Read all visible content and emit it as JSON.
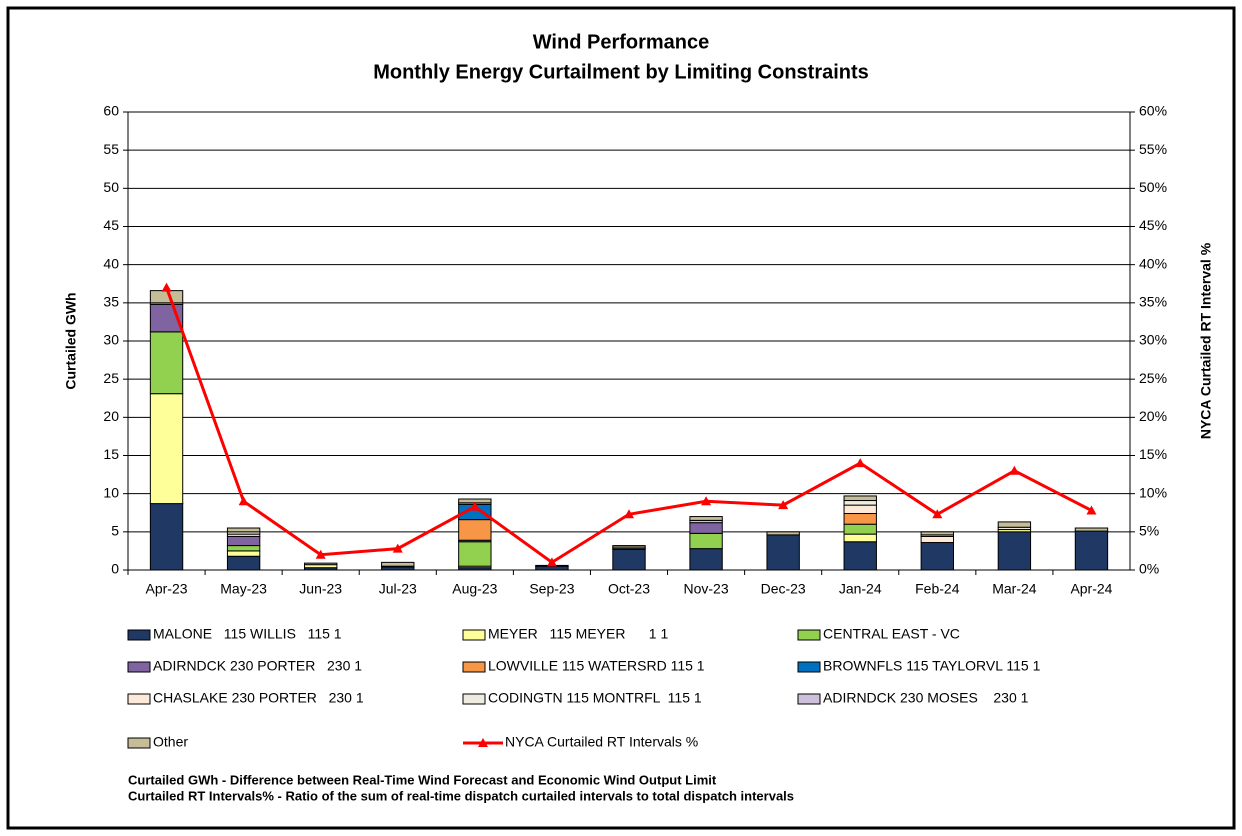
{
  "chart_data": {
    "type": "bar",
    "title": "Wind Performance",
    "subtitle": "Monthly Energy Curtailment by Limiting Constraints",
    "y_label": "Curtailed GWh",
    "y2_label": "NYCA Curtailed RT Interval %",
    "categories": [
      "Apr-23",
      "May-23",
      "Jun-23",
      "Jul-23",
      "Aug-23",
      "Sep-23",
      "Oct-23",
      "Nov-23",
      "Dec-23",
      "Jan-24",
      "Feb-24",
      "Mar-24",
      "Apr-24"
    ],
    "ylim": [
      0,
      60
    ],
    "yticks": [
      0,
      5,
      10,
      15,
      20,
      25,
      30,
      35,
      40,
      45,
      50,
      55,
      60
    ],
    "y2lim": [
      0,
      60
    ],
    "y2ticks": [
      {
        "value": 0,
        "label": "0%"
      },
      {
        "value": 5,
        "label": "5%"
      },
      {
        "value": 10,
        "label": "10%"
      },
      {
        "value": 15,
        "label": "15%"
      },
      {
        "value": 20,
        "label": "20%"
      },
      {
        "value": 25,
        "label": "25%"
      },
      {
        "value": 30,
        "label": "30%"
      },
      {
        "value": 35,
        "label": "35%"
      },
      {
        "value": 40,
        "label": "40%"
      },
      {
        "value": 45,
        "label": "45%"
      },
      {
        "value": 50,
        "label": "50%"
      },
      {
        "value": 55,
        "label": "55%"
      },
      {
        "value": 60,
        "label": "60%"
      }
    ],
    "grid": true,
    "series": [
      {
        "name": "MALONE   115 WILLIS   115 1",
        "color": "#1f3864",
        "values": [
          8.7,
          1.8,
          0.3,
          0.4,
          0.3,
          0.5,
          2.7,
          2.8,
          4.6,
          3.7,
          3.6,
          5.0,
          5.1
        ]
      },
      {
        "name": "MEYER   115 MEYER      1 1",
        "color": "#ffff99",
        "values": [
          14.4,
          0.7,
          0.4,
          0.1,
          0.2,
          0,
          0.1,
          0,
          0,
          1.0,
          0,
          0.3,
          0
        ]
      },
      {
        "name": "CENTRAL EAST - VC",
        "color": "#92d050",
        "values": [
          8.1,
          0.7,
          0,
          0,
          3.2,
          0,
          0,
          2.0,
          0,
          1.3,
          0,
          0,
          0
        ]
      },
      {
        "name": "ADIRNDCK 230 PORTER   230 1",
        "color": "#8064a2",
        "values": [
          3.6,
          1.2,
          0,
          0,
          0.2,
          0,
          0,
          1.4,
          0,
          0,
          0,
          0,
          0
        ]
      },
      {
        "name": "LOWVILLE 115 WATERSRD 115 1",
        "color": "#f79646",
        "values": [
          0,
          0,
          0,
          0,
          2.7,
          0,
          0,
          0,
          0,
          1.4,
          0,
          0,
          0
        ]
      },
      {
        "name": "BROWNFLS 115 TAYLORVL 115 1",
        "color": "#0070c0",
        "values": [
          0,
          0,
          0,
          0,
          2.0,
          0,
          0,
          0,
          0,
          0,
          0,
          0,
          0
        ]
      },
      {
        "name": "CHASLAKE 230 PORTER   230 1",
        "color": "#fde9d9",
        "values": [
          0,
          0.3,
          0,
          0,
          0,
          0,
          0,
          0,
          0,
          1.1,
          0.8,
          0,
          0
        ]
      },
      {
        "name": "CODINGTN 115 MONTRFL  115 1",
        "color": "#eeece1",
        "values": [
          0.2,
          0.3,
          0,
          0,
          0.2,
          0,
          0.2,
          0,
          0,
          0.6,
          0.2,
          0.3,
          0
        ]
      },
      {
        "name": "ADIRNDCK 230 MOSES    230 1",
        "color": "#ccc0da",
        "values": [
          0,
          0,
          0,
          0,
          0,
          0,
          0,
          0.3,
          0,
          0,
          0,
          0,
          0
        ]
      },
      {
        "name": "Other",
        "color": "#c4bd97",
        "values": [
          1.6,
          0.5,
          0.2,
          0.5,
          0.5,
          0.1,
          0.2,
          0.5,
          0.4,
          0.6,
          0.4,
          0.7,
          0.4
        ]
      },
      {
        "name": "NYCA Curtailed RT Intervals %",
        "color": "#ff0000",
        "type": "line",
        "axis": "y2",
        "values": [
          37,
          9,
          2,
          2.8,
          8.3,
          1,
          7.3,
          9,
          8.5,
          14,
          7.3,
          13,
          7.8
        ]
      }
    ],
    "notes": [
      "Curtailed GWh - Difference between Real-Time Wind Forecast and Economic Wind Output Limit",
      "Curtailed RT Intervals% - Ratio of the sum of real-time dispatch curtailed intervals to total dispatch intervals"
    ]
  }
}
